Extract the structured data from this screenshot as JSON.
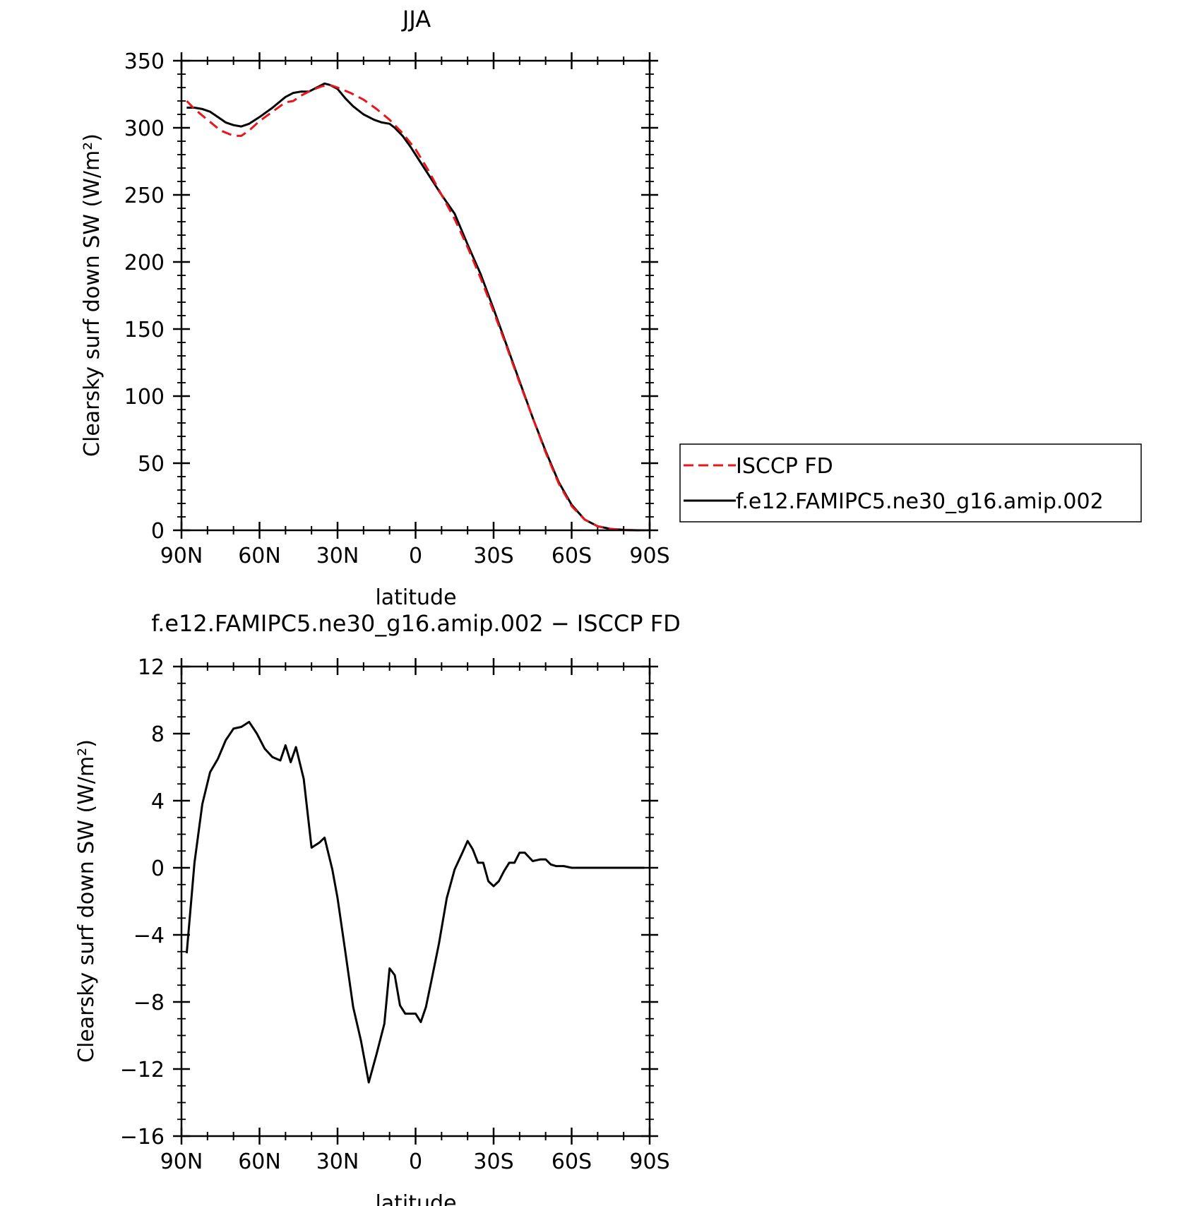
{
  "chart_data": [
    {
      "type": "line",
      "title": "JJA",
      "xlabel": "latitude",
      "ylabel": "Clearsky surf down SW (W/m²)",
      "xlim": [
        90,
        -90
      ],
      "ylim": [
        0,
        350
      ],
      "x_ticks": [
        90,
        60,
        30,
        0,
        -30,
        -60,
        -90
      ],
      "x_tick_labels": [
        "90N",
        "60N",
        "30N",
        "0",
        "30S",
        "60S",
        "90S"
      ],
      "y_ticks": [
        0,
        50,
        100,
        150,
        200,
        250,
        300,
        350
      ],
      "y_tick_labels": [
        "0",
        "50",
        "100",
        "150",
        "200",
        "250",
        "300",
        "350"
      ],
      "legend_position": "right",
      "series": [
        {
          "name": "ISCCP FD",
          "color": "#e8161b",
          "dash": "dashed",
          "x": [
            88,
            85,
            80,
            75,
            70,
            67,
            64,
            60,
            55,
            50,
            47,
            44,
            40,
            36,
            33,
            30,
            25,
            20,
            15,
            10,
            5,
            0,
            -5,
            -10,
            -15,
            -20,
            -25,
            -30,
            -35,
            -40,
            -45,
            -50,
            -55,
            -60,
            -65,
            -70,
            -75,
            -80,
            -85,
            -88
          ],
          "y": [
            320,
            314,
            306,
            298,
            294,
            294,
            298,
            305,
            312,
            319,
            320,
            324,
            328,
            331,
            332,
            330,
            326,
            321,
            314,
            306,
            296,
            284,
            268,
            250,
            232,
            211,
            188,
            163,
            137,
            110,
            84,
            58,
            35,
            18,
            8,
            3,
            1,
            0.3,
            0,
            0
          ]
        },
        {
          "name": "f.e12.FAMIPC5.ne30_g16.amip.002",
          "color": "#000000",
          "dash": "solid",
          "x": [
            88,
            85,
            82,
            79,
            76,
            73,
            70,
            67,
            64,
            60,
            55,
            50,
            47,
            44,
            41,
            38,
            35,
            33,
            30,
            27,
            24,
            20,
            16,
            13,
            10,
            8,
            5,
            2,
            0,
            -5,
            -10,
            -15,
            -20,
            -25,
            -30,
            -35,
            -40,
            -45,
            -50,
            -55,
            -60,
            -65,
            -70,
            -75,
            -80,
            -85,
            -88
          ],
          "y": [
            315,
            315,
            314,
            312,
            308,
            304,
            302,
            301,
            303,
            308,
            315,
            323,
            326,
            327,
            327,
            330,
            333,
            332,
            329,
            322,
            316,
            310,
            306,
            304,
            303,
            300,
            294,
            286,
            280,
            265,
            250,
            236,
            213,
            191,
            165,
            138,
            111,
            84,
            59,
            36,
            19,
            8,
            3,
            1,
            0.3,
            0,
            0
          ]
        }
      ]
    },
    {
      "type": "line",
      "title": "f.e12.FAMIPC5.ne30_g16.amip.002 − ISCCP FD",
      "xlabel": "latitude",
      "ylabel": "Clearsky surf down SW (W/m²)",
      "xlim": [
        90,
        -90
      ],
      "ylim": [
        -16,
        12
      ],
      "x_ticks": [
        90,
        60,
        30,
        0,
        -30,
        -60,
        -90
      ],
      "x_tick_labels": [
        "90N",
        "60N",
        "30N",
        "0",
        "30S",
        "60S",
        "90S"
      ],
      "y_ticks": [
        -16,
        -12,
        -8,
        -4,
        0,
        4,
        8,
        12
      ],
      "y_tick_labels": [
        "−16",
        "−12",
        "−8",
        "−4",
        "0",
        "4",
        "8",
        "12"
      ],
      "series": [
        {
          "color": "#000000",
          "dash": "solid",
          "x": [
            88,
            85,
            82,
            79,
            76,
            73,
            70,
            67,
            64,
            61,
            58,
            55,
            52,
            50,
            48,
            46,
            43,
            40,
            37,
            35,
            32,
            30,
            27,
            24,
            21,
            18,
            15,
            12,
            10,
            8,
            6,
            4,
            2,
            0,
            -2,
            -4,
            -6,
            -9,
            -12,
            -15,
            -18,
            -20,
            -22,
            -24,
            -26,
            -28,
            -30,
            -32,
            -34,
            -36,
            -38,
            -40,
            -42,
            -45,
            -48,
            -50,
            -52,
            -54,
            -57,
            -60,
            -63,
            -66,
            -70,
            -75,
            -80,
            -85,
            -88
          ],
          "y": [
            -5.1,
            0.3,
            3.8,
            5.7,
            6.5,
            7.6,
            8.3,
            8.4,
            8.7,
            8,
            7.1,
            6.6,
            6.4,
            7.3,
            6.3,
            7.2,
            5.3,
            1.2,
            1.5,
            1.8,
            -0.1,
            -1.8,
            -5,
            -8.3,
            -10.3,
            -12.8,
            -11.1,
            -9.3,
            -6,
            -6.4,
            -8.2,
            -8.7,
            -8.7,
            -8.7,
            -9.2,
            -8.3,
            -6.8,
            -4.5,
            -1.8,
            -0.1,
            0.9,
            1.6,
            1.1,
            0.3,
            0.3,
            -0.8,
            -1.1,
            -0.8,
            -0.2,
            0.3,
            0.3,
            0.9,
            0.9,
            0.4,
            0.5,
            0.5,
            0.2,
            0.1,
            0.1,
            0,
            0,
            0,
            0,
            0,
            0,
            0,
            0
          ]
        }
      ]
    }
  ]
}
